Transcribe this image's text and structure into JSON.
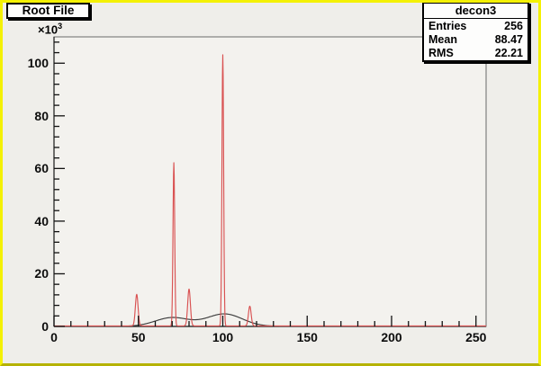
{
  "canvas": {
    "title_box_label": "Root File"
  },
  "stats_box": {
    "title": "decon3",
    "rows": [
      {
        "label": "Entries",
        "value": "256"
      },
      {
        "label": "Mean",
        "value": "88.47"
      },
      {
        "label": "RMS",
        "value": "22.21"
      }
    ]
  },
  "y_axis_exponent": {
    "base": "×10",
    "exp": "3"
  },
  "colors": {
    "canvas_bg": "#efeeea",
    "frame_bg": "#f3f2ee",
    "border_yellow": "#f4f104",
    "border_yellow_dark": "#b5b203",
    "pave_bg": "#fdfdfc",
    "red_series": "#d95252",
    "black_series": "#3d3d3d",
    "axis": "#161616",
    "frame_border": "#6a6a6a"
  },
  "chart_data": {
    "type": "line",
    "title": "",
    "description": "ROOT TSpectrum deconvolution: sharp red deconvoluted peaks (decon3) drawn over the smooth black source spectrum",
    "x_range": [
      0,
      256
    ],
    "y_range": [
      0,
      110
    ],
    "y_unit": "×10³ counts",
    "xlabel": "",
    "ylabel": "",
    "grid": false,
    "legend": false,
    "x_ticks": [
      0,
      50,
      100,
      150,
      200,
      250
    ],
    "x_minor_step": 10,
    "y_ticks": [
      0,
      20,
      40,
      60,
      80,
      100
    ],
    "y_minor_step": 4,
    "series": [
      {
        "name": "source-spectrum-black",
        "color_key": "black_series",
        "baseline": 0.05,
        "gaussians": [
          {
            "x": 70,
            "height": 3.3,
            "sigma": 10
          },
          {
            "x": 101,
            "height": 4.7,
            "sigma": 10.5
          }
        ]
      },
      {
        "name": "decon3-red-peaks",
        "color_key": "red_series",
        "baseline": 0.2,
        "gaussians": [
          {
            "x": 49,
            "height": 12,
            "sigma": 0.8
          },
          {
            "x": 71,
            "height": 62,
            "sigma": 0.5
          },
          {
            "x": 80,
            "height": 14,
            "sigma": 0.8
          },
          {
            "x": 100,
            "height": 103,
            "sigma": 0.5
          },
          {
            "x": 116,
            "height": 7.5,
            "sigma": 0.8
          }
        ]
      }
    ]
  }
}
